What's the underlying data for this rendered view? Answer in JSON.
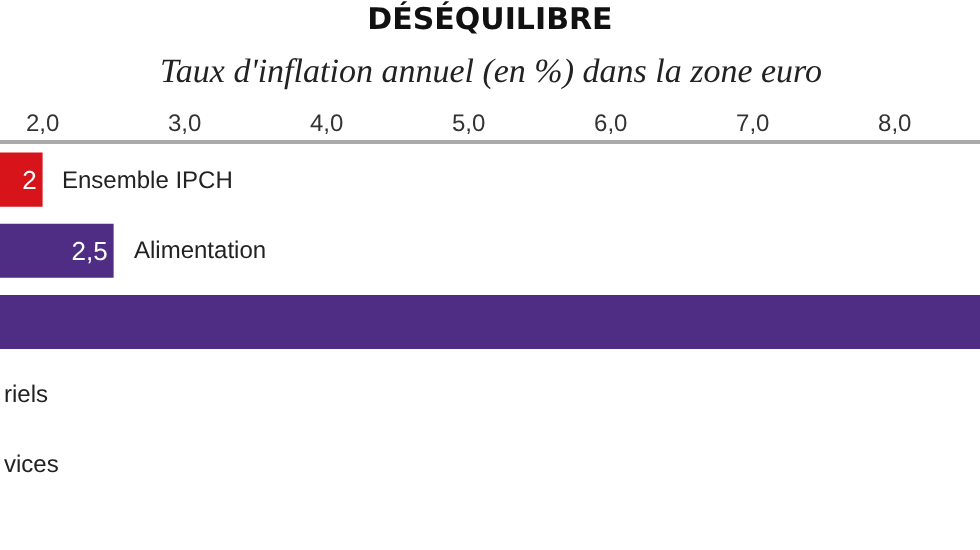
{
  "chart_data": {
    "type": "bar",
    "orientation": "horizontal",
    "title": "DÉSÉQUILIBRE",
    "subtitle": "Taux d'inflation annuel (en %) dans la zone euro",
    "categories": [
      "Ensemble IPCH",
      "Alimentation",
      null,
      "riels",
      "vices"
    ],
    "values": [
      2,
      2.5,
      8.6,
      null,
      null
    ],
    "colors": [
      "#d7141a",
      "#4f2d84",
      "#4f2d84",
      "#4f2d84",
      "#4f2d84"
    ],
    "value_labels": [
      "2",
      "2,5",
      null,
      null,
      null
    ],
    "xlim": [
      1.7,
      8.6
    ],
    "xticks": [
      {
        "value": 2,
        "label": "2,0"
      },
      {
        "value": 3,
        "label": "3,0"
      },
      {
        "value": 4,
        "label": "4,0"
      },
      {
        "value": 5,
        "label": "5,0"
      },
      {
        "value": 6,
        "label": "6,0"
      },
      {
        "value": 7,
        "label": "7,0"
      },
      {
        "value": 8,
        "label": "8,0"
      }
    ],
    "legend": false
  }
}
